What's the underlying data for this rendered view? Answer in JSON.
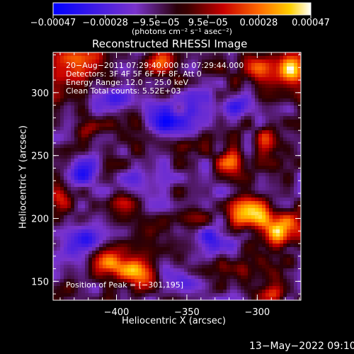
{
  "chart_data": {
    "type": "heatmap",
    "title": "Reconstructed RHESSI Image",
    "xlabel": "Heliocentric X (arcsec)",
    "ylabel": "Heliocentric Y (arcsec)",
    "xlim": [
      -445,
      -269
    ],
    "ylim": [
      135,
      332
    ],
    "x_ticks": [
      -400,
      -350,
      -300
    ],
    "x_tick_labels": [
      "−400",
      "−350",
      "−300"
    ],
    "y_ticks": [
      150,
      200,
      250,
      300
    ],
    "y_tick_labels": [
      "150",
      "200",
      "250",
      "300"
    ],
    "colorbar": {
      "range": [
        -0.00047,
        0.00047
      ],
      "ticks": [
        -0.00047,
        -0.00028,
        -9.5e-05,
        9.5e-05,
        0.00028,
        0.00047
      ],
      "tick_labels": [
        "−0.00047",
        "−0.00028",
        "−9.5e−05",
        "9.5e−05",
        "0.00028",
        "0.00047"
      ],
      "unit_text": "(photons cm⁻² s⁻¹ asec⁻²)"
    },
    "annotations": [
      "20−Aug−2011 07:29:40.000 to 07:29:44.000",
      "Detectors: 3F 4F 5F 6F 7F 8F, Att 0",
      "Energy Range: 12.0 − 25.0 keV",
      "Clean     Total counts: 5.52E+03"
    ],
    "peak_label": "Position of Peak = [−301,195]",
    "peak": [
      -301,
      195
    ],
    "bright_sources": [
      {
        "x": -305,
        "y": 205,
        "intensity": 1.0,
        "sx": 10,
        "sy": 9
      },
      {
        "x": -282,
        "y": 192,
        "intensity": 0.9,
        "sx": 9,
        "sy": 10
      },
      {
        "x": -430,
        "y": 320,
        "intensity": 0.9,
        "sx": 12,
        "sy": 10
      },
      {
        "x": -370,
        "y": 325,
        "intensity": 0.7,
        "sx": 10,
        "sy": 8
      },
      {
        "x": -300,
        "y": 320,
        "intensity": 0.8,
        "sx": 9,
        "sy": 9
      },
      {
        "x": -275,
        "y": 318,
        "intensity": 0.95,
        "sx": 8,
        "sy": 9
      },
      {
        "x": -405,
        "y": 165,
        "intensity": 0.85,
        "sx": 10,
        "sy": 8
      },
      {
        "x": -385,
        "y": 158,
        "intensity": 0.8,
        "sx": 8,
        "sy": 8
      },
      {
        "x": -320,
        "y": 245,
        "intensity": 0.75,
        "sx": 7,
        "sy": 7
      },
      {
        "x": -290,
        "y": 262,
        "intensity": 0.6,
        "sx": 6,
        "sy": 8
      },
      {
        "x": -440,
        "y": 215,
        "intensity": 0.6,
        "sx": 6,
        "sy": 8
      },
      {
        "x": -395,
        "y": 212,
        "intensity": 0.6,
        "sx": 7,
        "sy": 6
      },
      {
        "x": -315,
        "y": 160,
        "intensity": 0.5,
        "sx": 8,
        "sy": 6
      },
      {
        "x": -350,
        "y": 258,
        "intensity": 0.45,
        "sx": 8,
        "sy": 5
      },
      {
        "x": -420,
        "y": 270,
        "intensity": 0.45,
        "sx": 7,
        "sy": 6
      },
      {
        "x": -345,
        "y": 200,
        "intensity": 0.4,
        "sx": 6,
        "sy": 6
      },
      {
        "x": -290,
        "y": 140,
        "intensity": 0.45,
        "sx": 7,
        "sy": 5
      }
    ],
    "negative_regions": [
      {
        "x": -420,
        "y": 180,
        "intensity": -0.7,
        "sx": 10,
        "sy": 8
      },
      {
        "x": -360,
        "y": 280,
        "intensity": -0.6,
        "sx": 12,
        "sy": 10
      },
      {
        "x": -330,
        "y": 180,
        "intensity": -0.6,
        "sx": 9,
        "sy": 9
      },
      {
        "x": -350,
        "y": 148,
        "intensity": -0.55,
        "sx": 10,
        "sy": 7
      },
      {
        "x": -395,
        "y": 295,
        "intensity": -0.5,
        "sx": 9,
        "sy": 8
      },
      {
        "x": -315,
        "y": 290,
        "intensity": -0.5,
        "sx": 9,
        "sy": 7
      },
      {
        "x": -425,
        "y": 240,
        "intensity": -0.55,
        "sx": 8,
        "sy": 8
      }
    ]
  },
  "footer_timestamp": "13−May−2022 09:10"
}
